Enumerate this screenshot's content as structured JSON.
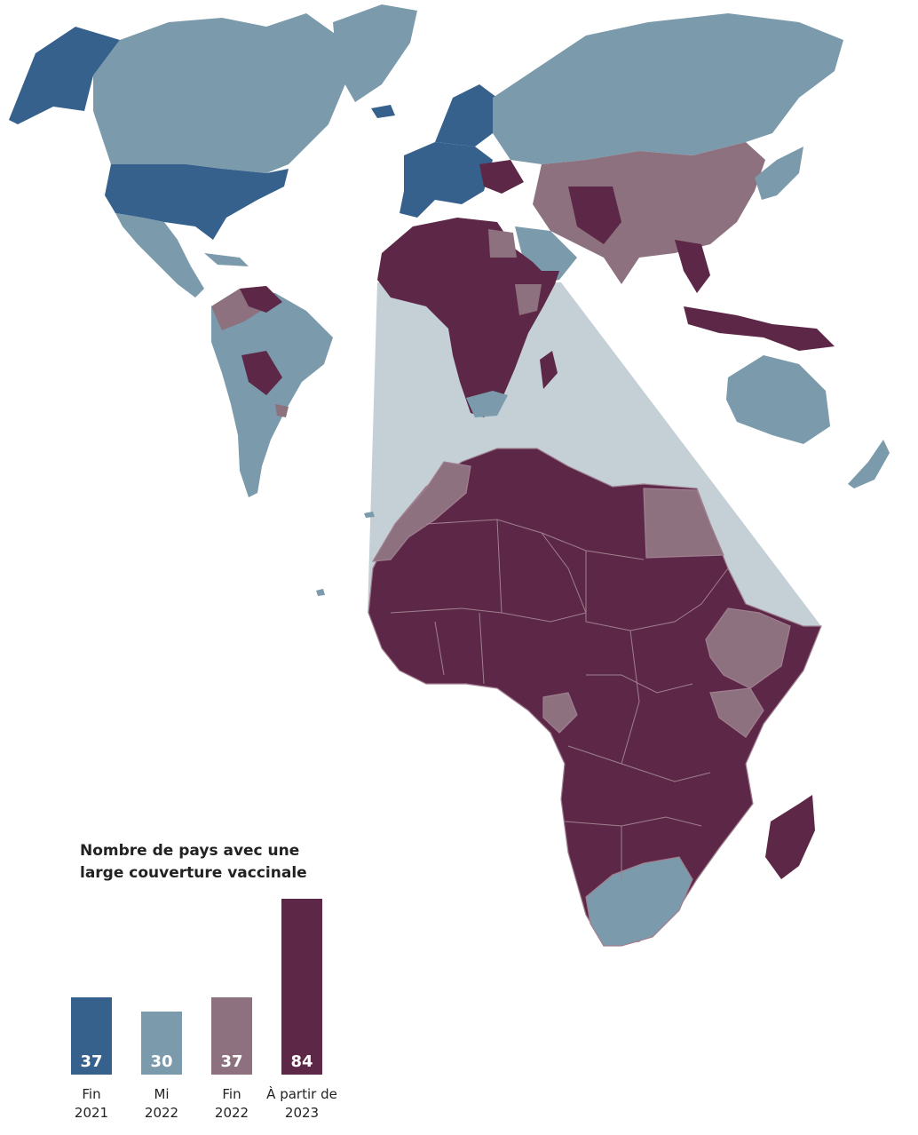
{
  "legend": {
    "title_line1": "Nombre de pays avec une",
    "title_line2": "large couverture vaccinale"
  },
  "colors": {
    "fin_2021": "#35618c",
    "mi_2022": "#7b9aab",
    "fin_2022": "#8d717f",
    "a_partir_de_2023": "#5d2847",
    "zoom_triangle": "#c4d0d6"
  },
  "chart_data": {
    "type": "bar",
    "categories": [
      "Fin 2021",
      "Mi 2022",
      "Fin 2022",
      "À partir de 2023"
    ],
    "values": [
      37,
      30,
      37,
      84
    ],
    "category_lines": [
      [
        "Fin",
        "2021"
      ],
      [
        "Mi",
        "2022"
      ],
      [
        "Fin",
        "2022"
      ],
      [
        "À partir de",
        "2023"
      ]
    ],
    "value_labels": [
      "37",
      "30",
      "37",
      "84"
    ],
    "title": "Nombre de pays avec une large couverture vaccinale"
  }
}
